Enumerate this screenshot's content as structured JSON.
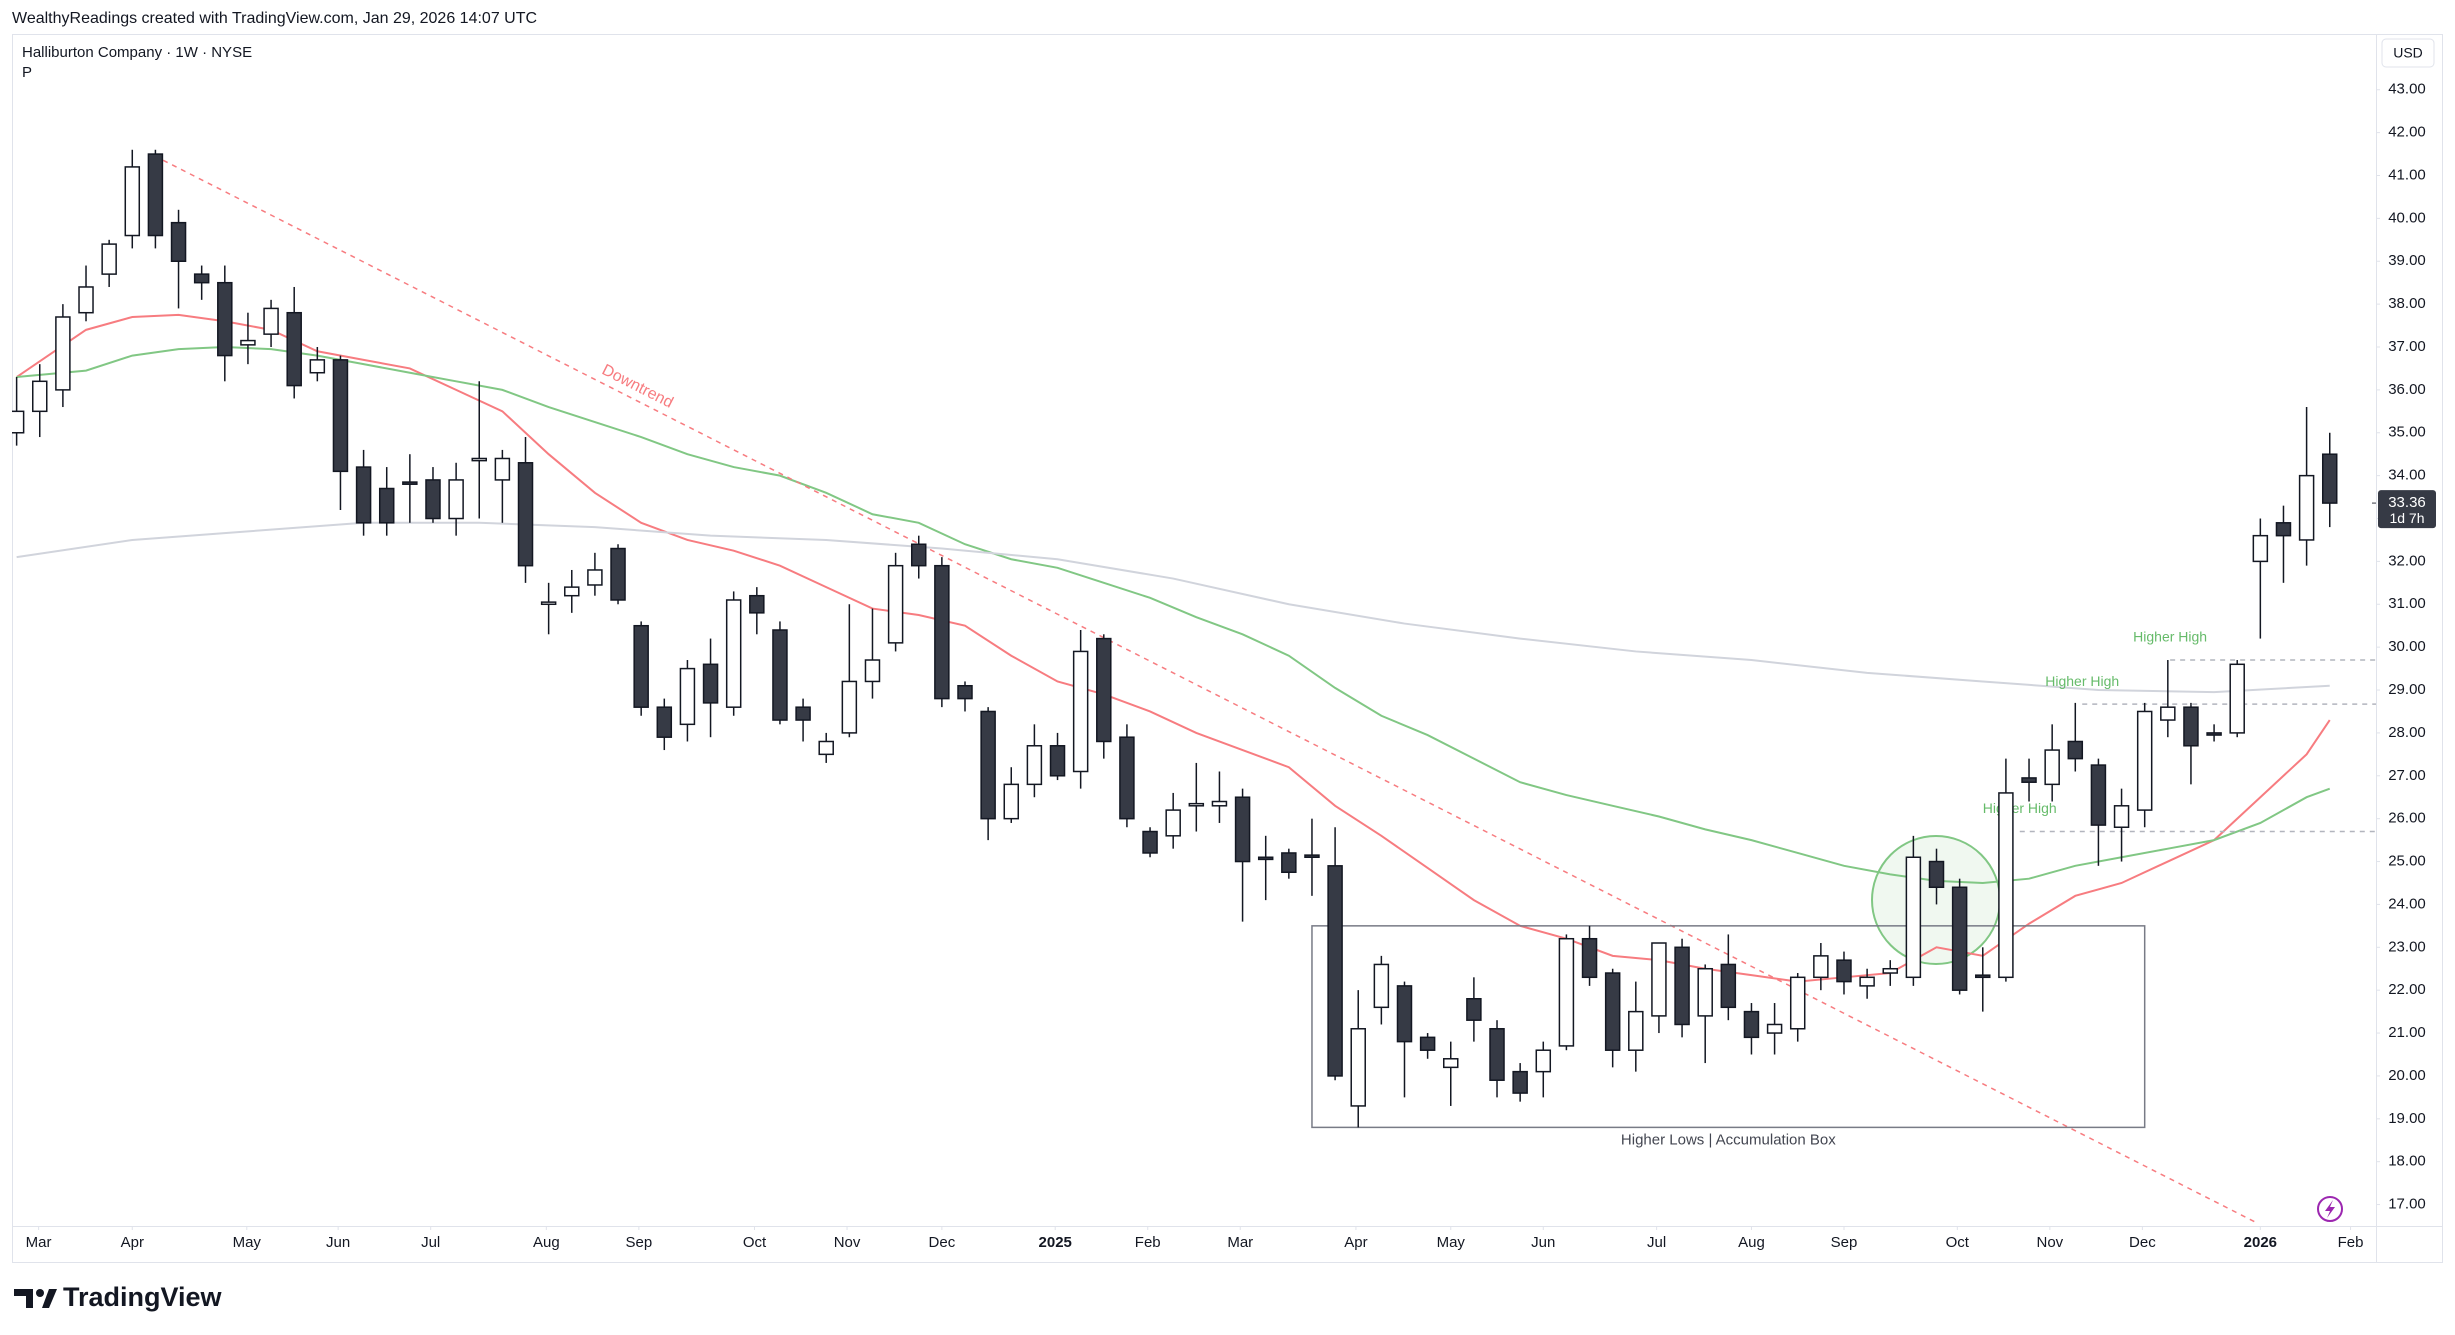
{
  "header": {
    "attribution": "WealthyReadings created with TradingView.com, Jan 29, 2026 14:07 UTC"
  },
  "footer": {
    "brand": "TradingView"
  },
  "chart_data": {
    "type": "candlestick",
    "title": "Halliburton Company · 1W · NYSE",
    "subtitle": "P",
    "currency": "USD",
    "open": [
      35.0,
      35.5,
      36.0,
      37.8,
      38.7,
      39.6,
      41.5,
      39.9,
      38.7,
      38.5,
      37.05,
      37.3,
      37.8,
      36.4,
      36.7,
      34.2,
      33.7,
      33.85,
      33.9,
      33.0,
      34.35,
      33.9,
      34.3,
      31.0,
      31.2,
      31.45,
      32.3,
      30.5,
      28.6,
      28.2,
      29.6,
      28.6,
      31.2,
      30.4,
      28.6,
      27.5,
      28.0,
      29.2,
      30.1,
      32.4,
      31.9,
      29.1,
      28.5,
      26.0,
      26.8,
      27.7,
      27.1,
      30.2,
      27.9,
      25.7,
      25.6,
      26.3,
      26.3,
      26.5,
      25.1,
      25.2,
      25.15,
      24.9,
      19.3,
      21.6,
      22.1,
      20.9,
      20.2,
      21.8,
      21.1,
      20.1,
      20.1,
      20.7,
      23.2,
      22.4,
      20.6,
      21.4,
      23.0,
      21.4,
      22.6,
      21.5,
      21.0,
      21.1,
      22.3,
      22.7,
      22.1,
      22.4,
      22.3,
      25.0,
      24.4,
      22.35,
      22.3,
      26.95,
      26.8,
      27.8,
      27.25,
      25.8,
      26.2,
      28.3,
      28.6,
      28.0,
      28.0,
      32.0,
      32.9,
      32.5,
      34.5
    ],
    "high": [
      36.3,
      36.6,
      38.0,
      38.9,
      39.5,
      41.6,
      41.6,
      40.2,
      38.9,
      38.9,
      37.8,
      38.1,
      38.4,
      37.0,
      36.8,
      34.6,
      34.2,
      34.5,
      34.2,
      34.3,
      36.2,
      34.6,
      34.9,
      31.5,
      31.8,
      32.2,
      32.4,
      30.6,
      28.8,
      29.7,
      30.2,
      31.3,
      31.4,
      30.6,
      28.8,
      28.0,
      31.0,
      30.9,
      32.2,
      32.6,
      32.1,
      29.2,
      28.6,
      27.2,
      28.2,
      28.0,
      30.4,
      30.3,
      28.2,
      25.8,
      26.6,
      27.3,
      27.1,
      26.7,
      25.6,
      25.3,
      26.0,
      25.8,
      22.0,
      22.8,
      22.2,
      21.0,
      20.8,
      22.3,
      21.3,
      20.3,
      20.8,
      23.3,
      23.5,
      22.5,
      22.2,
      23.1,
      23.2,
      22.6,
      23.3,
      21.7,
      21.7,
      22.4,
      23.1,
      22.9,
      22.5,
      22.7,
      25.6,
      25.3,
      24.6,
      23.0,
      27.4,
      27.4,
      28.2,
      28.7,
      27.4,
      26.7,
      28.7,
      29.7,
      28.7,
      28.2,
      29.7,
      33.0,
      33.3,
      35.6,
      35.0
    ],
    "low": [
      34.7,
      34.9,
      35.6,
      37.6,
      38.4,
      39.3,
      39.3,
      37.9,
      38.1,
      36.2,
      36.6,
      37.0,
      35.8,
      36.2,
      33.2,
      32.6,
      32.6,
      32.9,
      32.9,
      32.6,
      33.0,
      32.9,
      31.5,
      30.3,
      30.8,
      31.2,
      31.0,
      28.4,
      27.6,
      27.8,
      27.9,
      28.4,
      30.3,
      28.2,
      27.8,
      27.3,
      27.9,
      28.8,
      29.9,
      31.6,
      28.6,
      28.5,
      25.5,
      25.9,
      26.5,
      26.9,
      26.7,
      27.4,
      25.8,
      25.1,
      25.3,
      25.7,
      25.9,
      23.6,
      24.1,
      24.6,
      24.2,
      19.9,
      18.8,
      21.2,
      19.5,
      20.4,
      19.3,
      20.8,
      19.5,
      19.4,
      19.5,
      20.6,
      22.1,
      20.2,
      20.1,
      21.0,
      20.9,
      20.3,
      21.3,
      20.5,
      20.5,
      20.8,
      22.0,
      21.9,
      21.8,
      22.1,
      22.1,
      24.0,
      21.9,
      21.5,
      22.2,
      26.4,
      26.4,
      27.1,
      24.9,
      25.0,
      25.8,
      27.9,
      26.8,
      27.8,
      27.9,
      30.2,
      31.5,
      31.9,
      32.8
    ],
    "close": [
      35.5,
      36.2,
      37.7,
      38.4,
      39.4,
      41.2,
      39.6,
      39.0,
      38.5,
      36.8,
      37.15,
      37.9,
      36.1,
      36.7,
      34.1,
      32.9,
      32.9,
      33.8,
      33.0,
      33.9,
      34.4,
      34.4,
      31.9,
      31.05,
      31.4,
      31.8,
      31.1,
      28.6,
      27.9,
      29.5,
      28.7,
      31.1,
      30.8,
      28.3,
      28.3,
      27.8,
      29.2,
      29.7,
      31.9,
      31.9,
      28.8,
      28.8,
      26.0,
      26.8,
      27.7,
      27.0,
      29.9,
      27.8,
      26.0,
      25.2,
      26.2,
      26.35,
      26.4,
      25.0,
      25.05,
      24.75,
      25.1,
      20.0,
      21.1,
      22.6,
      20.8,
      20.6,
      20.4,
      21.3,
      19.9,
      19.6,
      20.6,
      23.2,
      22.3,
      20.6,
      21.5,
      23.1,
      21.2,
      22.5,
      21.6,
      20.9,
      21.2,
      22.3,
      22.8,
      22.2,
      22.3,
      22.5,
      25.1,
      24.4,
      22.0,
      22.3,
      26.6,
      26.85,
      27.6,
      27.4,
      25.85,
      26.3,
      28.5,
      28.6,
      27.7,
      27.95,
      29.6,
      32.6,
      32.6,
      34.0,
      33.36
    ],
    "up_color": "#ffffff",
    "down_color": "#363a45",
    "border_color": "#131722",
    "series": [
      {
        "color": "#f77c80",
        "x": [
          0,
          3,
          5,
          7,
          9,
          11,
          13,
          15,
          17,
          19,
          21,
          23,
          25,
          27,
          29,
          31,
          33,
          35,
          37,
          39,
          41,
          43,
          45,
          47,
          49,
          51,
          53,
          55,
          57,
          59,
          61,
          63,
          65,
          67,
          69,
          71,
          73,
          75,
          77,
          79,
          81,
          83,
          85,
          87,
          89,
          91,
          93,
          95,
          97,
          99,
          100
        ],
        "values": [
          36.3,
          37.4,
          37.7,
          37.75,
          37.6,
          37.4,
          36.9,
          36.7,
          36.5,
          36.0,
          35.5,
          34.5,
          33.6,
          32.9,
          32.5,
          32.25,
          31.9,
          31.4,
          30.9,
          30.75,
          30.5,
          29.8,
          29.2,
          28.9,
          28.5,
          28.0,
          27.6,
          27.2,
          26.3,
          25.6,
          24.85,
          24.1,
          23.5,
          23.2,
          22.8,
          22.7,
          22.5,
          22.35,
          22.2,
          22.3,
          22.4,
          23.0,
          22.8,
          23.55,
          24.2,
          24.5,
          25.0,
          25.5,
          26.5,
          27.5,
          28.3
        ]
      },
      {
        "color": "#81c784",
        "x": [
          0,
          3,
          5,
          7,
          9,
          11,
          13,
          15,
          17,
          19,
          21,
          23,
          25,
          27,
          29,
          31,
          33,
          35,
          37,
          39,
          41,
          43,
          45,
          47,
          49,
          51,
          53,
          55,
          57,
          59,
          61,
          63,
          65,
          67,
          69,
          71,
          73,
          75,
          77,
          79,
          81,
          83,
          85,
          87,
          89,
          91,
          93,
          95,
          97,
          99,
          100
        ],
        "values": [
          36.3,
          36.45,
          36.8,
          36.95,
          37.0,
          36.95,
          36.8,
          36.6,
          36.4,
          36.2,
          36.0,
          35.6,
          35.25,
          34.9,
          34.5,
          34.2,
          34.0,
          33.6,
          33.1,
          32.9,
          32.4,
          32.05,
          31.85,
          31.5,
          31.15,
          30.7,
          30.3,
          29.8,
          29.05,
          28.4,
          27.95,
          27.4,
          26.85,
          26.55,
          26.3,
          26.05,
          25.75,
          25.5,
          25.2,
          24.9,
          24.7,
          24.55,
          24.5,
          24.6,
          24.9,
          25.1,
          25.3,
          25.5,
          25.9,
          26.5,
          26.7
        ]
      },
      {
        "color": "#d1d4dc",
        "x": [
          0,
          5,
          10,
          15,
          20,
          25,
          30,
          35,
          40,
          45,
          50,
          55,
          60,
          65,
          70,
          75,
          80,
          85,
          90,
          95,
          100
        ],
        "values": [
          32.1,
          32.5,
          32.7,
          32.9,
          32.9,
          32.8,
          32.6,
          32.5,
          32.3,
          32.05,
          31.6,
          31.0,
          30.55,
          30.2,
          29.9,
          29.7,
          29.4,
          29.2,
          29.0,
          28.95,
          29.1
        ]
      }
    ],
    "last_price": 33.36,
    "countdown": "1d 7h",
    "xlim": [
      -0.2,
      102
    ],
    "xticks": [
      {
        "value": 0.95,
        "label": "Mar"
      },
      {
        "value": 5.0,
        "label": "Apr"
      },
      {
        "value": 9.95,
        "label": "May"
      },
      {
        "value": 13.9,
        "label": "Jun"
      },
      {
        "value": 17.9,
        "label": "Jul"
      },
      {
        "value": 22.9,
        "label": "Aug"
      },
      {
        "value": 26.9,
        "label": "Sep"
      },
      {
        "value": 31.9,
        "label": "Oct"
      },
      {
        "value": 35.9,
        "label": "Nov"
      },
      {
        "value": 40.0,
        "label": "Dec"
      },
      {
        "value": 44.9,
        "label": "2025"
      },
      {
        "value": 48.9,
        "label": "Feb"
      },
      {
        "value": 52.9,
        "label": "Mar"
      },
      {
        "value": 57.9,
        "label": "Apr"
      },
      {
        "value": 62.0,
        "label": "May"
      },
      {
        "value": 66.0,
        "label": "Jun"
      },
      {
        "value": 70.9,
        "label": "Jul"
      },
      {
        "value": 75.0,
        "label": "Aug"
      },
      {
        "value": 79.0,
        "label": "Sep"
      },
      {
        "value": 83.9,
        "label": "Oct"
      },
      {
        "value": 87.9,
        "label": "Nov"
      },
      {
        "value": 91.9,
        "label": "Dec"
      },
      {
        "value": 97.0,
        "label": "2026"
      },
      {
        "value": 100.9,
        "label": "Feb"
      }
    ],
    "ylim": [
      16.5,
      44.3
    ],
    "yticks": [
      {
        "value": 17,
        "label": "17.00"
      },
      {
        "value": 18,
        "label": "18.00"
      },
      {
        "value": 19,
        "label": "19.00"
      },
      {
        "value": 20,
        "label": "20.00"
      },
      {
        "value": 21,
        "label": "21.00"
      },
      {
        "value": 22,
        "label": "22.00"
      },
      {
        "value": 23,
        "label": "23.00"
      },
      {
        "value": 24,
        "label": "24.00"
      },
      {
        "value": 25,
        "label": "25.00"
      },
      {
        "value": 26,
        "label": "26.00"
      },
      {
        "value": 27,
        "label": "27.00"
      },
      {
        "value": 28,
        "label": "28.00"
      },
      {
        "value": 29,
        "label": "29.00"
      },
      {
        "value": 30,
        "label": "30.00"
      },
      {
        "value": 31,
        "label": "31.00"
      },
      {
        "value": 32,
        "label": "32.00"
      },
      {
        "value": 33,
        "label": "33.00"
      },
      {
        "value": 34,
        "label": "34.00"
      },
      {
        "value": 35,
        "label": "35.00"
      },
      {
        "value": 36,
        "label": "36.00"
      },
      {
        "value": 37,
        "label": "37.00"
      },
      {
        "value": 38,
        "label": "38.00"
      },
      {
        "value": 39,
        "label": "39.00"
      },
      {
        "value": 40,
        "label": "40.00"
      },
      {
        "value": 41,
        "label": "41.00"
      },
      {
        "value": 42,
        "label": "42.00"
      },
      {
        "value": 43,
        "label": "43.00"
      }
    ],
    "trendline": {
      "label": "Downtrend",
      "color": "#f77c80",
      "x": [
        5.95,
        96.75
      ],
      "values": [
        41.46,
        16.6
      ]
    },
    "box": {
      "label": "Higher Lows | Accumulation Box",
      "x": [
        56,
        92
      ],
      "values": [
        23.5,
        18.8
      ]
    },
    "levels": [
      {
        "label": "Higher High",
        "value": 25.7,
        "x": 86.6
      },
      {
        "label": "Higher High",
        "value": 28.67,
        "x": 89.3
      },
      {
        "label": "Higher High",
        "value": 29.7,
        "x": 93.1
      }
    ]
  }
}
